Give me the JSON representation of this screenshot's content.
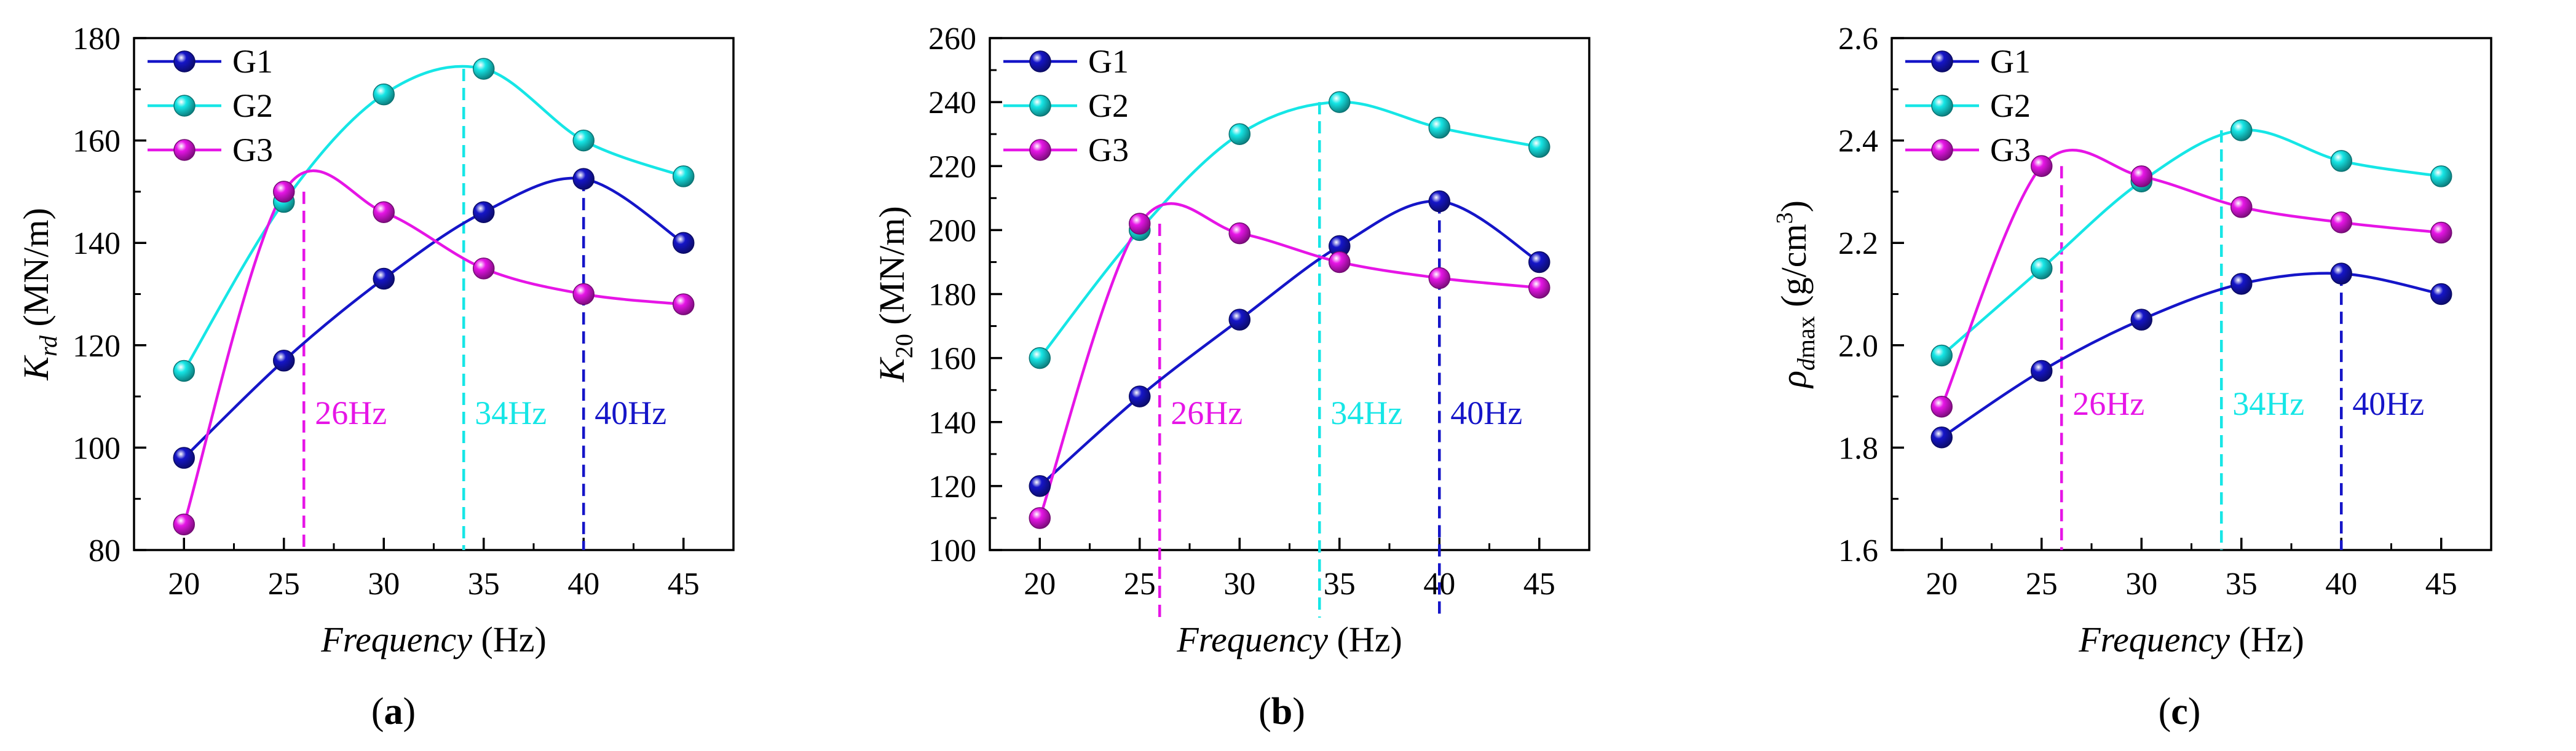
{
  "colors": {
    "G1": "#1515c8",
    "G2": "#16e6e6",
    "G3": "#e615e6",
    "axis": "#000000"
  },
  "chart_data": [
    {
      "panel_label": "(a)",
      "type": "line",
      "ylabel_main": "K",
      "ylabel_sub": "rd",
      "ylabel_unit": " (MN/m)",
      "xlabel_main": "Frequency",
      "xlabel_unit": " (Hz)",
      "xlim": [
        17.5,
        47.5
      ],
      "ylim": [
        80,
        180
      ],
      "xticks": [
        20,
        25,
        30,
        35,
        40,
        45
      ],
      "yticks": [
        80,
        100,
        120,
        140,
        160,
        180
      ],
      "x": [
        20,
        25,
        30,
        35,
        40,
        45
      ],
      "series": [
        {
          "name": "G1",
          "values": [
            98,
            117,
            133,
            146,
            152.5,
            140
          ]
        },
        {
          "name": "G2",
          "values": [
            115,
            148,
            169,
            174,
            160,
            153
          ]
        },
        {
          "name": "G3",
          "values": [
            85,
            150,
            146,
            135,
            130,
            128
          ]
        }
      ],
      "legend": [
        "G1",
        "G2",
        "G3"
      ],
      "annotations": [
        {
          "series": "G3",
          "x": 26,
          "y": 150,
          "label": "26Hz"
        },
        {
          "series": "G2",
          "x": 34,
          "y": 174,
          "label": "34Hz"
        },
        {
          "series": "G1",
          "x": 40,
          "y": 152.5,
          "label": "40Hz"
        }
      ]
    },
    {
      "panel_label": "(b)",
      "type": "line",
      "ylabel_main": "K",
      "ylabel_sub": "20",
      "ylabel_unit": " (MN/m)",
      "xlabel_main": "Frequency",
      "xlabel_unit": " (Hz)",
      "xlim": [
        17.5,
        47.5
      ],
      "ylim": [
        100,
        260
      ],
      "xticks": [
        20,
        25,
        30,
        35,
        40,
        45
      ],
      "yticks": [
        100,
        120,
        140,
        160,
        180,
        200,
        220,
        240,
        260
      ],
      "x": [
        20,
        25,
        30,
        35,
        40,
        45
      ],
      "series": [
        {
          "name": "G1",
          "values": [
            120,
            148,
            172,
            195,
            209,
            190
          ]
        },
        {
          "name": "G2",
          "values": [
            160,
            200,
            230,
            240,
            232,
            226
          ]
        },
        {
          "name": "G3",
          "values": [
            110,
            202,
            199,
            190,
            185,
            182
          ]
        }
      ],
      "legend": [
        "G1",
        "G2",
        "G3"
      ],
      "annotations": [
        {
          "series": "G3",
          "x": 26,
          "y": 202,
          "label": "26Hz"
        },
        {
          "series": "G2",
          "x": 34,
          "y": 240,
          "label": "34Hz"
        },
        {
          "series": "G1",
          "x": 40,
          "y": 209,
          "label": "40Hz"
        }
      ]
    },
    {
      "panel_label": "(c)",
      "type": "line",
      "ylabel_main": "ρ",
      "ylabel_sub": "d",
      "ylabel_sub2": "max",
      "ylabel_unit": " (g/cm",
      "ylabel_sup": "3",
      "ylabel_close": ")",
      "xlabel_main": "Frequency",
      "xlabel_unit": " (Hz)",
      "xlim": [
        17.5,
        47.5
      ],
      "ylim": [
        1.6,
        2.6
      ],
      "xticks": [
        20,
        25,
        30,
        35,
        40,
        45
      ],
      "yticks": [
        1.6,
        1.8,
        2.0,
        2.2,
        2.4,
        2.6
      ],
      "ytick_labels": [
        "1.6",
        "1.8",
        "2.0",
        "2.2",
        "2.4",
        "2.6"
      ],
      "x": [
        20,
        25,
        30,
        35,
        40,
        45
      ],
      "series": [
        {
          "name": "G1",
          "values": [
            1.82,
            1.95,
            2.05,
            2.12,
            2.14,
            2.1
          ]
        },
        {
          "name": "G2",
          "values": [
            1.98,
            2.15,
            2.32,
            2.42,
            2.36,
            2.33
          ]
        },
        {
          "name": "G3",
          "values": [
            1.88,
            2.35,
            2.33,
            2.27,
            2.24,
            2.22
          ]
        }
      ],
      "legend": [
        "G1",
        "G2",
        "G3"
      ],
      "annotations": [
        {
          "series": "G3",
          "x": 26,
          "y": 2.35,
          "label": "26Hz"
        },
        {
          "series": "G2",
          "x": 34,
          "y": 2.42,
          "label": "34Hz"
        },
        {
          "series": "G1",
          "x": 40,
          "y": 2.14,
          "label": "40Hz"
        }
      ]
    }
  ]
}
